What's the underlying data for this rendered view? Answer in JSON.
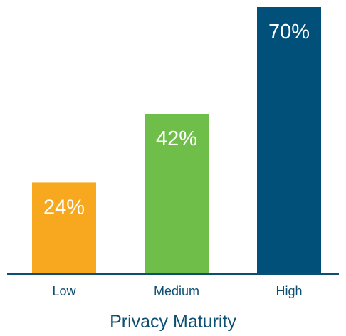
{
  "chart_data": {
    "type": "bar",
    "categories": [
      "Low",
      "Medium",
      "High"
    ],
    "values": [
      24,
      42,
      70
    ],
    "value_labels": [
      "24%",
      "42%",
      "70%"
    ],
    "xlabel": "Privacy Maturity",
    "ylabel": "",
    "ylim": [
      0,
      70
    ],
    "grid": false,
    "legend": "none",
    "colors": [
      "#f8a81e",
      "#6fbe4a",
      "#00507a"
    ],
    "axis_color": "#0d4f73"
  }
}
